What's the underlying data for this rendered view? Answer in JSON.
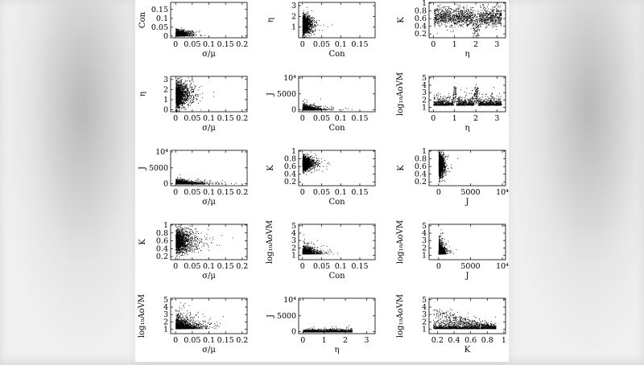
{
  "chart_data": [
    {
      "type": "scatter",
      "xlabel": "σ/μ",
      "ylabel": "Con",
      "xticks": [
        "0",
        "0.05",
        "0.1",
        "0.15",
        "0.2"
      ],
      "yticks": [
        "0",
        "0.05",
        "0.1",
        "0.15"
      ],
      "xlim": [
        -0.015,
        0.215
      ],
      "ylim": [
        -0.01,
        0.19
      ],
      "xtv": [
        0,
        0.05,
        0.1,
        0.15,
        0.2
      ],
      "ytv": [
        0,
        0.05,
        0.1,
        0.15
      ]
    },
    {
      "type": "scatter",
      "xlabel": "Con",
      "ylabel": "η",
      "xticks": [
        "0",
        "0.05",
        "0.1",
        "0.15"
      ],
      "yticks": [
        "1",
        "2",
        "3"
      ],
      "xlim": [
        -0.01,
        0.19
      ],
      "ylim": [
        0,
        3.3
      ],
      "xtv": [
        0,
        0.05,
        0.1,
        0.15
      ],
      "ytv": [
        1,
        2,
        3
      ]
    },
    {
      "type": "scatter",
      "xlabel": "η",
      "ylabel": "K",
      "xticks": [
        "0",
        "1",
        "2",
        "3"
      ],
      "yticks": [
        "0.2",
        "0.4",
        "0.6",
        "0.8",
        "1"
      ],
      "xlim": [
        -0.2,
        3.4
      ],
      "ylim": [
        0.1,
        1.02
      ],
      "xtv": [
        0,
        1,
        2,
        3
      ],
      "ytv": [
        0.2,
        0.4,
        0.6,
        0.8,
        1
      ]
    },
    {
      "type": "scatter",
      "xlabel": "σ/μ",
      "ylabel": "η",
      "xticks": [
        "0",
        "0.05",
        "0.1",
        "0.15",
        "0.2"
      ],
      "yticks": [
        "0",
        "1",
        "2",
        "3"
      ],
      "xlim": [
        -0.015,
        0.215
      ],
      "ylim": [
        -0.2,
        3.3
      ],
      "xtv": [
        0,
        0.05,
        0.1,
        0.15,
        0.2
      ],
      "ytv": [
        0,
        1,
        2,
        3
      ]
    },
    {
      "type": "scatter",
      "xlabel": "Con",
      "ylabel": "J",
      "xticks": [
        "0",
        "0.05",
        "0.1",
        "0.15"
      ],
      "yticks": [
        "0",
        "5000",
        "10⁴"
      ],
      "xlim": [
        -0.01,
        0.19
      ],
      "ylim": [
        -600,
        10500
      ],
      "xtv": [
        0,
        0.05,
        0.1,
        0.15
      ],
      "ytv": [
        0,
        5000,
        10000
      ]
    },
    {
      "type": "scatter",
      "xlabel": "η",
      "ylabel": "log₁₀AoVM",
      "xticks": [
        "0",
        "1",
        "2",
        "3"
      ],
      "yticks": [
        "1",
        "2",
        "3",
        "4",
        "5"
      ],
      "xlim": [
        -0.2,
        3.4
      ],
      "ylim": [
        0.4,
        5.2
      ],
      "xtv": [
        0,
        1,
        2,
        3
      ],
      "ytv": [
        1,
        2,
        3,
        4,
        5
      ]
    },
    {
      "type": "scatter",
      "xlabel": "σ/μ",
      "ylabel": "J",
      "xticks": [
        "0",
        "0.05",
        "0.1",
        "0.15",
        "0.2"
      ],
      "yticks": [
        "0",
        "5000",
        "10⁴"
      ],
      "xlim": [
        -0.015,
        0.215
      ],
      "ylim": [
        -600,
        10500
      ],
      "xtv": [
        0,
        0.05,
        0.1,
        0.15,
        0.2
      ],
      "ytv": [
        0,
        5000,
        10000
      ]
    },
    {
      "type": "scatter",
      "xlabel": "Con",
      "ylabel": "K",
      "xticks": [
        "0",
        "0.05",
        "0.1",
        "0.15"
      ],
      "yticks": [
        "0.2",
        "0.4",
        "0.6",
        "0.8",
        "1"
      ],
      "xlim": [
        -0.01,
        0.19
      ],
      "ylim": [
        0.1,
        1.02
      ],
      "xtv": [
        0,
        0.05,
        0.1,
        0.15
      ],
      "ytv": [
        0.2,
        0.4,
        0.6,
        0.8,
        1
      ]
    },
    {
      "type": "scatter",
      "xlabel": "J",
      "ylabel": "K",
      "xticks": [
        "0",
        "5000",
        "10⁴"
      ],
      "yticks": [
        "0.2",
        "0.4",
        "0.6",
        "0.8",
        "1"
      ],
      "xlim": [
        -1500,
        10500
      ],
      "ylim": [
        0.1,
        1.02
      ],
      "xtv": [
        0,
        5000,
        10000
      ],
      "ytv": [
        0.2,
        0.4,
        0.6,
        0.8,
        1
      ]
    },
    {
      "type": "scatter",
      "xlabel": "σ/μ",
      "ylabel": "K",
      "xticks": [
        "0",
        "0.05",
        "0.1",
        "0.15",
        "0.2"
      ],
      "yticks": [
        "0.2",
        "0.4",
        "0.6",
        "0.8",
        "1"
      ],
      "xlim": [
        -0.015,
        0.215
      ],
      "ylim": [
        0.12,
        1.02
      ],
      "xtv": [
        0,
        0.05,
        0.1,
        0.15,
        0.2
      ],
      "ytv": [
        0.2,
        0.4,
        0.6,
        0.8,
        1
      ]
    },
    {
      "type": "scatter",
      "xlabel": "Con",
      "ylabel": "log₁₀AoVM",
      "xticks": [
        "0",
        "0.05",
        "0.1",
        "0.15"
      ],
      "yticks": [
        "1",
        "2",
        "3",
        "4",
        "5"
      ],
      "xlim": [
        -0.01,
        0.19
      ],
      "ylim": [
        0.4,
        5.2
      ],
      "xtv": [
        0,
        0.05,
        0.1,
        0.15
      ],
      "ytv": [
        1,
        2,
        3,
        4,
        5
      ]
    },
    {
      "type": "scatter",
      "xlabel": "J",
      "ylabel": "log₁₀AoVM",
      "xticks": [
        "0",
        "5000",
        "10⁴"
      ],
      "yticks": [
        "1",
        "2",
        "3",
        "4",
        "5"
      ],
      "xlim": [
        -1500,
        10500
      ],
      "ylim": [
        0.4,
        5.2
      ],
      "xtv": [
        0,
        5000,
        10000
      ],
      "ytv": [
        1,
        2,
        3,
        4,
        5
      ]
    },
    {
      "type": "scatter",
      "xlabel": "σ/μ",
      "ylabel": "log₁₀AoVM",
      "xticks": [
        "0",
        "0.05",
        "0.1",
        "0.15",
        "0.2"
      ],
      "yticks": [
        "1",
        "2",
        "3",
        "4",
        "5"
      ],
      "xlim": [
        -0.015,
        0.215
      ],
      "ylim": [
        0.4,
        5.2
      ],
      "xtv": [
        0,
        0.05,
        0.1,
        0.15,
        0.2
      ],
      "ytv": [
        1,
        2,
        3,
        4,
        5
      ]
    },
    {
      "type": "scatter",
      "xlabel": "η",
      "ylabel": "J",
      "xticks": [
        "0",
        "1",
        "2",
        "3"
      ],
      "yticks": [
        "0",
        "5000",
        "10⁴"
      ],
      "xlim": [
        -0.2,
        3.4
      ],
      "ylim": [
        -600,
        10500
      ],
      "xtv": [
        0,
        1,
        2,
        3
      ],
      "ytv": [
        0,
        5000,
        10000
      ]
    },
    {
      "type": "scatter",
      "xlabel": "K",
      "ylabel": "log₁₀AoVM",
      "xticks": [
        "0.2",
        "0.4",
        "0.6",
        "0.8",
        "1"
      ],
      "yticks": [
        "1",
        "2",
        "3",
        "4",
        "5"
      ],
      "xlim": [
        0.1,
        1.02
      ],
      "ylim": [
        0.4,
        5.2
      ],
      "xtv": [
        0.2,
        0.4,
        0.6,
        0.8,
        1
      ],
      "ytv": [
        1,
        2,
        3,
        4,
        5
      ]
    }
  ]
}
